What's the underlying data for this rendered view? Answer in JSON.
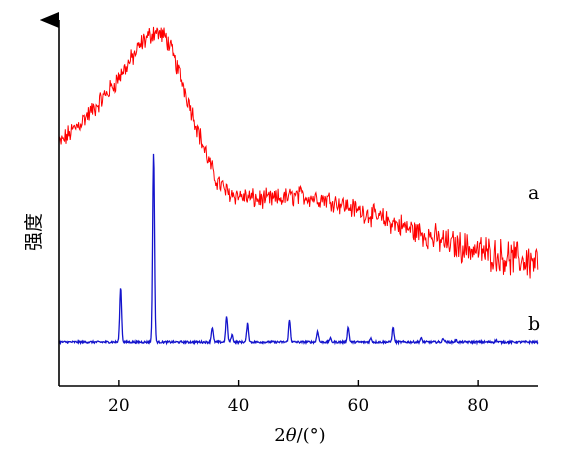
{
  "chart_data": {
    "type": "line",
    "title": "",
    "xlabel_prefix": "2",
    "xlabel_theta": "θ",
    "xlabel_suffix": "/(°)",
    "ylabel": "强度",
    "xlim": [
      10,
      90
    ],
    "xticks": [
      "20",
      "40",
      "60",
      "80"
    ],
    "yticks": [],
    "grid": false,
    "legend": "none",
    "series": [
      {
        "name": "a",
        "color": "#ff0000",
        "x": [
          10,
          13,
          16,
          19,
          22,
          24,
          26,
          28,
          30,
          32,
          34,
          36,
          38,
          40,
          43,
          46,
          50,
          55,
          60,
          65,
          70,
          75,
          80,
          85,
          89
        ],
        "y": [
          0.66,
          0.71,
          0.76,
          0.82,
          0.89,
          0.94,
          0.97,
          0.95,
          0.86,
          0.76,
          0.66,
          0.57,
          0.53,
          0.52,
          0.51,
          0.51,
          0.52,
          0.51,
          0.48,
          0.45,
          0.42,
          0.39,
          0.37,
          0.35,
          0.34
        ],
        "noise": "high"
      },
      {
        "name": "b",
        "color": "#1414cc",
        "baseline": 0.12,
        "peaks": [
          {
            "x": 20.3,
            "y": 0.27
          },
          {
            "x": 25.8,
            "y": 0.64
          },
          {
            "x": 35.6,
            "y": 0.16
          },
          {
            "x": 38.0,
            "y": 0.19
          },
          {
            "x": 38.9,
            "y": 0.14
          },
          {
            "x": 41.5,
            "y": 0.17
          },
          {
            "x": 48.5,
            "y": 0.18
          },
          {
            "x": 53.2,
            "y": 0.15
          },
          {
            "x": 55.3,
            "y": 0.13
          },
          {
            "x": 58.3,
            "y": 0.16
          },
          {
            "x": 62.1,
            "y": 0.13
          },
          {
            "x": 65.8,
            "y": 0.16
          },
          {
            "x": 70.5,
            "y": 0.13
          },
          {
            "x": 74.2,
            "y": 0.13
          },
          {
            "x": 76.3,
            "y": 0.125
          },
          {
            "x": 83.0,
            "y": 0.125
          }
        ]
      }
    ]
  }
}
